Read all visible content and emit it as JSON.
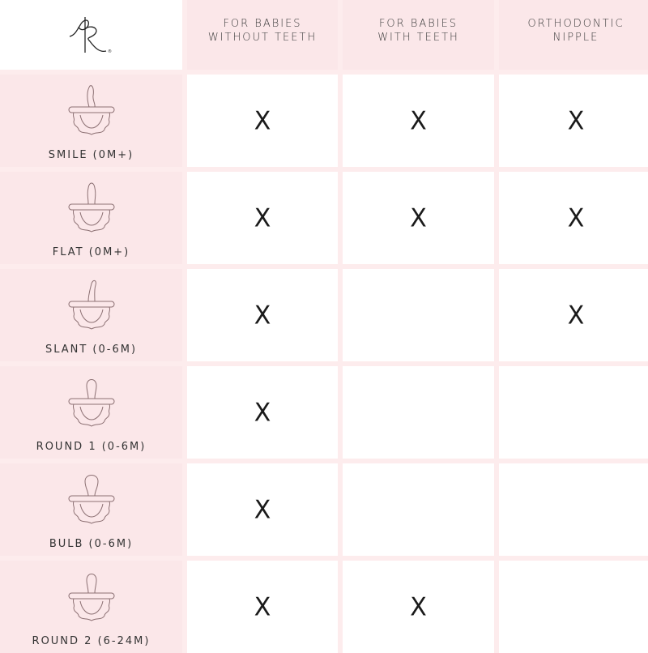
{
  "brand": {
    "logo_text": "RR",
    "registered": "®",
    "logo-icon": "script-rr-monogram"
  },
  "columns": [
    {
      "line1": "FOR BABIES",
      "line2": "WITHOUT TEETH"
    },
    {
      "line1": "FOR BABIES",
      "line2": "WITH TEETH"
    },
    {
      "line1": "ORTHODONTIC",
      "line2": "NIPPLE"
    }
  ],
  "mark": "X",
  "rows": [
    {
      "label": "SMILE (0M+)",
      "icon": "pacifier-smile-icon",
      "nipple": "smile",
      "checks": [
        true,
        true,
        true
      ]
    },
    {
      "label": "FLAT (0M+)",
      "icon": "pacifier-flat-icon",
      "nipple": "flat",
      "checks": [
        true,
        true,
        true
      ]
    },
    {
      "label": "SLANT (0-6M)",
      "icon": "pacifier-slant-icon",
      "nipple": "slant",
      "checks": [
        true,
        false,
        true
      ]
    },
    {
      "label": "ROUND 1 (0-6M)",
      "icon": "pacifier-round-icon",
      "nipple": "round",
      "checks": [
        true,
        false,
        false
      ]
    },
    {
      "label": "BULB (0-6M)",
      "icon": "pacifier-bulb-icon",
      "nipple": "bulb",
      "checks": [
        true,
        false,
        false
      ]
    },
    {
      "label": "ROUND 2 (6-24M)",
      "icon": "pacifier-round-icon",
      "nipple": "round",
      "checks": [
        true,
        true,
        false
      ]
    }
  ],
  "colors": {
    "header_bg": "#fbe7e9",
    "grid_line": "#fdeced",
    "icon_stroke": "#8c7073",
    "text": "#333333"
  }
}
